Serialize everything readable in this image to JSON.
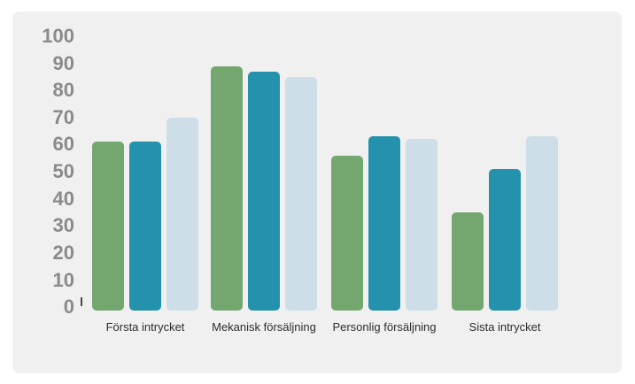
{
  "page": {
    "background": "#ffffff",
    "panel_background": "#f0f0f1"
  },
  "chart_data": {
    "type": "bar",
    "title": "",
    "xlabel": "",
    "ylabel": "",
    "categories": [
      "Första intrycket",
      "Mekanisk försäljning",
      "Personlig försäljning",
      "Sista intrycket"
    ],
    "series": [
      {
        "name": "green",
        "color": "#74a76f",
        "values": [
          61,
          89,
          56,
          35
        ]
      },
      {
        "name": "teal",
        "color": "#2492ad",
        "values": [
          61,
          87,
          63,
          51
        ]
      },
      {
        "name": "light-blue",
        "color": "#cddee9",
        "values": [
          70,
          85,
          62,
          63
        ]
      }
    ],
    "yticks": [
      0,
      10,
      20,
      30,
      40,
      50,
      60,
      70,
      80,
      90,
      100
    ],
    "ylim": [
      0,
      100
    ],
    "grid": false,
    "legend": "none",
    "axis_label_color": "#8a8a8c",
    "category_label_color": "#2d2d2d",
    "tick_mark_color": "#4a4a4a"
  }
}
